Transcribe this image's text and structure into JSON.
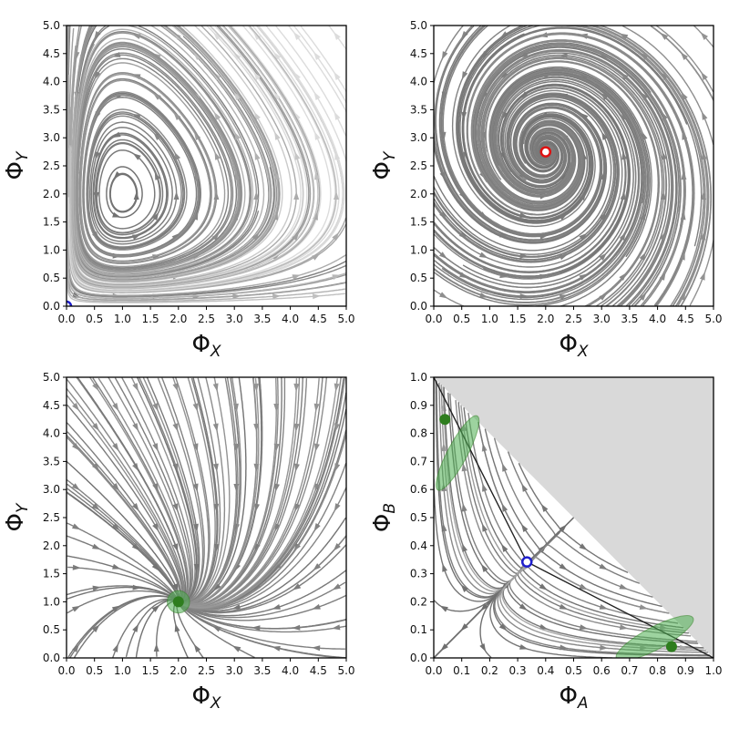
{
  "figure": {
    "panels": [
      {
        "id": "top-left",
        "xlabel": {
          "base": "Φ",
          "sub": "X"
        },
        "ylabel": {
          "base": "Φ",
          "sub": "Y"
        },
        "xticks": [
          "0.0",
          "0.5",
          "1.0",
          "1.5",
          "2.0",
          "2.5",
          "3.0",
          "3.5",
          "4.0",
          "4.5",
          "5.0"
        ],
        "yticks": [
          "0.0",
          "0.5",
          "1.0",
          "1.5",
          "2.0",
          "2.5",
          "3.0",
          "3.5",
          "4.0",
          "4.5",
          "5.0"
        ]
      },
      {
        "id": "top-right",
        "xlabel": {
          "base": "Φ",
          "sub": "X"
        },
        "ylabel": {
          "base": "Φ",
          "sub": "Y"
        },
        "xticks": [
          "0.0",
          "0.5",
          "1.0",
          "1.5",
          "2.0",
          "2.5",
          "3.0",
          "3.5",
          "4.0",
          "4.5",
          "5.0"
        ],
        "yticks": [
          "0.0",
          "0.5",
          "1.0",
          "1.5",
          "2.0",
          "2.5",
          "3.0",
          "3.5",
          "4.0",
          "4.5",
          "5.0"
        ]
      },
      {
        "id": "bottom-left",
        "xlabel": {
          "base": "Φ",
          "sub": "X"
        },
        "ylabel": {
          "base": "Φ",
          "sub": "Y"
        },
        "xticks": [
          "0.0",
          "0.5",
          "1.0",
          "1.5",
          "2.0",
          "2.5",
          "3.0",
          "3.5",
          "4.0",
          "4.5",
          "5.0"
        ],
        "yticks": [
          "0.0",
          "0.5",
          "1.0",
          "1.5",
          "2.0",
          "2.5",
          "3.0",
          "3.5",
          "4.0",
          "4.5",
          "5.0"
        ]
      },
      {
        "id": "bottom-right",
        "xlabel": {
          "base": "Φ",
          "sub": "A"
        },
        "ylabel": {
          "base": "Φ",
          "sub": "B"
        },
        "xticks": [
          "0.0",
          "0.1",
          "0.2",
          "0.3",
          "0.4",
          "0.5",
          "0.6",
          "0.7",
          "0.8",
          "0.9",
          "1.0"
        ],
        "yticks": [
          "0.0",
          "0.1",
          "0.2",
          "0.3",
          "0.4",
          "0.5",
          "0.6",
          "0.7",
          "0.8",
          "0.9",
          "1.0"
        ]
      }
    ]
  },
  "chart_data": [
    {
      "type": "scatter",
      "subtype": "streamplot-phase-portrait",
      "title": "",
      "xlabel": "Φ_X",
      "ylabel": "Φ_Y",
      "xlim": [
        0,
        5
      ],
      "ylim": [
        0,
        5
      ],
      "field": "lotka-volterra-center",
      "field_params": {
        "center": [
          1.0,
          2.0
        ]
      },
      "fixed_points": [
        {
          "x": 0.0,
          "y": 0.0,
          "marker": "open-circle",
          "color": "#1f1fcc"
        }
      ],
      "stream_color": "gray",
      "grid": false
    },
    {
      "type": "scatter",
      "subtype": "streamplot-phase-portrait",
      "title": "",
      "xlabel": "Φ_X",
      "ylabel": "Φ_Y",
      "xlim": [
        0,
        5
      ],
      "ylim": [
        0,
        5
      ],
      "field": "stable-spiral",
      "field_params": {
        "center": [
          2.0,
          2.75
        ]
      },
      "fixed_points": [
        {
          "x": 2.0,
          "y": 2.75,
          "marker": "open-circle",
          "color": "#dd1111"
        }
      ],
      "stream_color": "gray",
      "grid": false
    },
    {
      "type": "scatter",
      "subtype": "streamplot-phase-portrait",
      "title": "",
      "xlabel": "Φ_X",
      "ylabel": "Φ_Y",
      "xlim": [
        0,
        5
      ],
      "ylim": [
        0,
        5
      ],
      "field": "stable-node",
      "field_params": {
        "center": [
          2.0,
          1.0
        ]
      },
      "fixed_points": [
        {
          "x": 2.0,
          "y": 1.0,
          "marker": "filled-circle",
          "color": "#2e7d1e"
        }
      ],
      "confidence_regions": [
        {
          "cx": 2.0,
          "cy": 1.0,
          "rx": 0.2,
          "ry": 0.2,
          "angle": 0,
          "color": "#4caf50",
          "opacity": 0.55
        }
      ],
      "stream_color": "gray",
      "grid": false
    },
    {
      "type": "scatter",
      "subtype": "streamplot-phase-portrait",
      "title": "",
      "xlabel": "Φ_A",
      "ylabel": "Φ_B",
      "xlim": [
        0,
        1
      ],
      "ylim": [
        0,
        1
      ],
      "field": "bistable-simplex",
      "forbidden_region": "Φ_A + Φ_B > 1",
      "forbidden_color": "#d9d9d9",
      "fixed_points": [
        {
          "x": 0.333,
          "y": 0.342,
          "marker": "open-circle",
          "color": "#1f1fcc"
        },
        {
          "x": 0.04,
          "y": 0.85,
          "marker": "filled-circle",
          "color": "#2e7d1e"
        },
        {
          "x": 0.85,
          "y": 0.04,
          "marker": "filled-circle",
          "color": "#2e7d1e"
        }
      ],
      "confidence_regions": [
        {
          "cx": 0.085,
          "cy": 0.73,
          "rx": 0.15,
          "ry": 0.035,
          "angle": -62,
          "color": "#4caf50",
          "opacity": 0.55
        },
        {
          "cx": 0.79,
          "cy": 0.07,
          "rx": 0.155,
          "ry": 0.04,
          "angle": -28,
          "color": "#4caf50",
          "opacity": 0.55
        }
      ],
      "separatrix": [
        [
          0.0,
          1.0
        ],
        [
          0.333,
          0.342
        ],
        [
          1.0,
          0.0
        ]
      ],
      "stream_color": "gray",
      "grid": false
    }
  ]
}
